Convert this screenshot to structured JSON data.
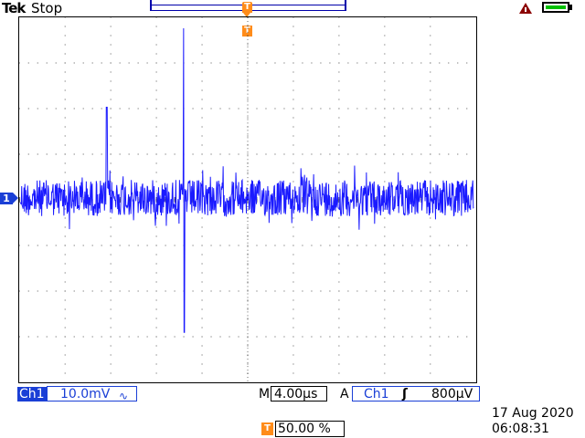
{
  "header": {
    "brand": "Tek",
    "run_state": "Stop",
    "trigger_marker_label": "T"
  },
  "status_icons": {
    "warning": "warning-triangle-icon",
    "battery": "battery-icon"
  },
  "channel_marker": "1",
  "colors": {
    "trace": "#1a1aff",
    "channel": "#1a3fd6",
    "trigger": "#ff8c1a"
  },
  "bottom_bar": {
    "channel_label": "Ch1",
    "channel_scale": "10.0mV",
    "coupling_icon": "∿",
    "timebase_prefix": "M",
    "timebase": "4.00µs",
    "trigger_mode": "A",
    "trigger_source": "Ch1",
    "trigger_slope_icon": "ʃ",
    "trigger_level": "800µV"
  },
  "trigger_position": {
    "icon": "T",
    "value": "50.00 %"
  },
  "datetime": {
    "date": "17 Aug 2020",
    "time": "06:08:31"
  }
}
